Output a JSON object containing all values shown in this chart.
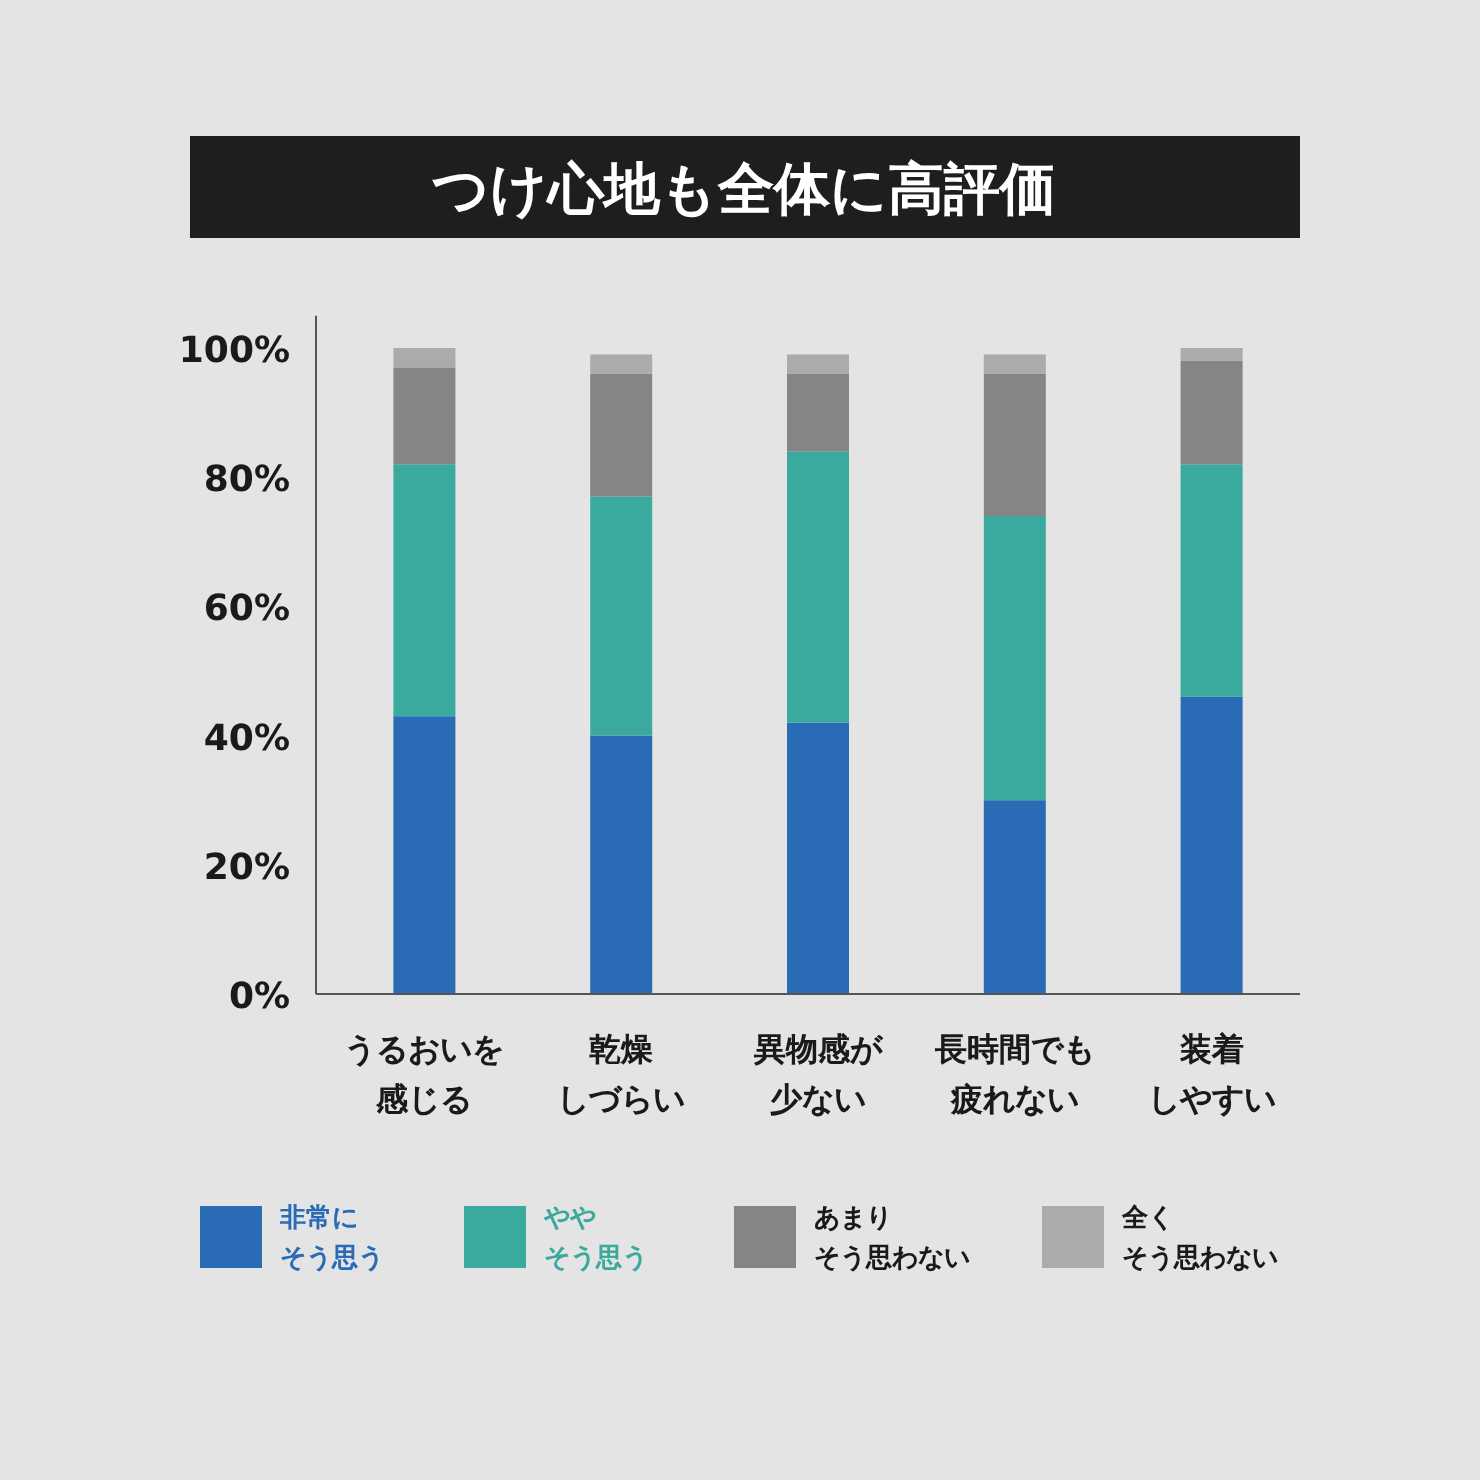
{
  "chart_data": {
    "type": "bar",
    "title": "つけ心地も全体に高評価",
    "stacked": true,
    "categories": [
      "うるおいを感じる",
      "乾燥しづらい",
      "異物感が少ない",
      "長時間でも疲れない",
      "装着しやすい"
    ],
    "series": [
      {
        "name": "非常にそう思う",
        "color": "#2a6bb5",
        "values": [
          43,
          40,
          42,
          30,
          46
        ]
      },
      {
        "name": "ややそう思う",
        "color": "#3aaa9e",
        "values": [
          39,
          37,
          42,
          44,
          36
        ]
      },
      {
        "name": "あまりそう思わない",
        "color": "#858585",
        "values": [
          15,
          19,
          12,
          22,
          16
        ]
      },
      {
        "name": "全くそう思わない",
        "color": "#ababab",
        "values": [
          3,
          3,
          3,
          3,
          2
        ]
      }
    ],
    "ylim": [
      0,
      105
    ],
    "yticks": [
      {
        "value": 0,
        "label": "0%"
      },
      {
        "value": 20,
        "label": "20%"
      },
      {
        "value": 40,
        "label": "40%"
      },
      {
        "value": 60,
        "label": "60%"
      },
      {
        "value": 80,
        "label": "80%"
      },
      {
        "value": 100,
        "label": "100%"
      }
    ],
    "legend": "bottom",
    "grid": false
  }
}
